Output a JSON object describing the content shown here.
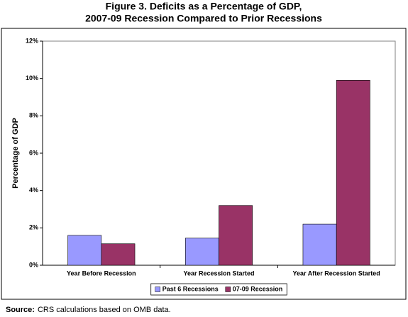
{
  "chart_data": {
    "type": "bar",
    "title": "Figure 3. Deficits as a Percentage of GDP,",
    "subtitle": "2007-09 Recession Compared to Prior Recessions",
    "y_label": "Percentage of GDP",
    "categories": [
      "Year Before Recession",
      "Year Recession Started",
      "Year After Recession Started"
    ],
    "series": [
      {
        "name": "Past 6 Recessions",
        "color": "#9999ff",
        "values": [
          1.6,
          1.45,
          2.2
        ]
      },
      {
        "name": "07-09 Recession",
        "color": "#993366",
        "values": [
          1.15,
          3.2,
          9.9
        ]
      }
    ],
    "ylim": [
      0,
      12
    ],
    "yticks": [
      {
        "value": 0,
        "label": "0%"
      },
      {
        "value": 2,
        "label": "2%"
      },
      {
        "value": 4,
        "label": "4%"
      },
      {
        "value": 6,
        "label": "6%"
      },
      {
        "value": 8,
        "label": "8%"
      },
      {
        "value": 10,
        "label": "10%"
      },
      {
        "value": 12,
        "label": "12%"
      }
    ],
    "grid": false,
    "legend": "bottom"
  },
  "source": {
    "label": "Source:",
    "text": "CRS calculations based on OMB data."
  }
}
